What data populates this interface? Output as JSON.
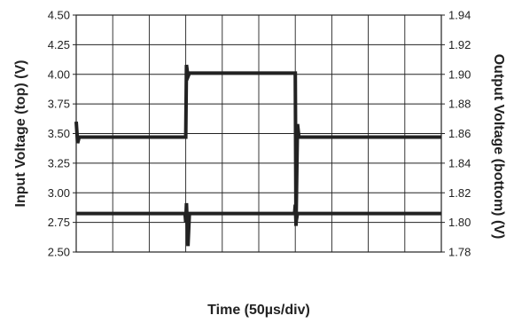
{
  "chart_data": {
    "type": "line",
    "xlabel": "Time (50µs/div)",
    "ylabel_left": "Input Voltage (top) (V)",
    "ylabel_right": "Output Voltage (bottom) (V)",
    "x_divisions": 10,
    "x_range": [
      0,
      500
    ],
    "x_unit": "µs",
    "ylim_left": [
      2.5,
      4.5
    ],
    "ylim_right": [
      1.78,
      1.94
    ],
    "yticks_left": [
      "2.50",
      "2.75",
      "3.00",
      "3.25",
      "3.50",
      "3.75",
      "4.00",
      "4.25",
      "4.50"
    ],
    "yticks_right": [
      "1.78",
      "1.80",
      "1.82",
      "1.84",
      "1.86",
      "1.88",
      "1.90",
      "1.92",
      "1.94"
    ],
    "grid": true,
    "series": [
      {
        "axis": "left",
        "color": "#222222",
        "points": [
          [
            0,
            3.6
          ],
          [
            2,
            3.42
          ],
          [
            4,
            3.47
          ],
          [
            150,
            3.47
          ],
          [
            151,
            4.08
          ],
          [
            153,
            3.98
          ],
          [
            155,
            4.01
          ],
          [
            300,
            4.01
          ],
          [
            301,
            2.72
          ],
          [
            303,
            3.58
          ],
          [
            305,
            3.47
          ],
          [
            500,
            3.47
          ]
        ]
      },
      {
        "axis": "right",
        "color": "#222222",
        "points": [
          [
            0,
            1.806
          ],
          [
            149,
            1.806
          ],
          [
            150,
            1.8
          ],
          [
            151,
            1.813
          ],
          [
            153,
            1.784
          ],
          [
            155,
            1.806
          ],
          [
            299,
            1.806
          ],
          [
            300,
            1.812
          ],
          [
            301,
            1.8
          ],
          [
            303,
            1.806
          ],
          [
            500,
            1.806
          ]
        ]
      }
    ]
  }
}
